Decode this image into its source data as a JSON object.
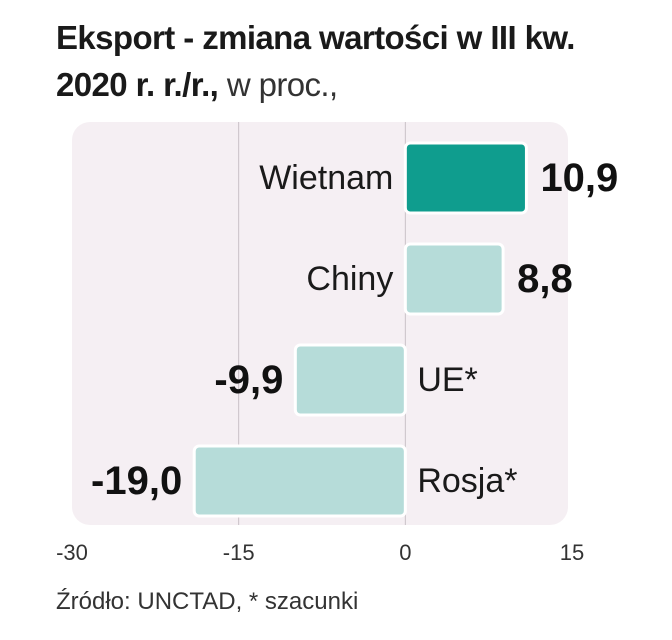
{
  "title_bold_1": "Eksport - zmiana wartości w III kw.",
  "title_bold_2": "2020 r. r./r.,",
  "title_unit": " w proc.,",
  "source": "Źródło: UNCTAD, * szacunki",
  "colors": {
    "highlight": "#0f9d8e",
    "bar": "#b6dcd9",
    "background": "#f5eff3"
  },
  "chart_data": {
    "type": "bar",
    "orientation": "horizontal",
    "categories": [
      "Wietnam",
      "Chiny",
      "UE*",
      "Rosja*"
    ],
    "values": [
      10.9,
      8.8,
      -9.9,
      -19.0
    ],
    "value_labels": [
      "10,9",
      "8,8",
      "-9,9",
      "-19,0"
    ],
    "highlighted": "Wietnam",
    "xlim": [
      -30,
      15
    ],
    "xticks": [
      -30,
      -15,
      0,
      15
    ],
    "xtick_labels": [
      "-30",
      "-15",
      "0",
      "15"
    ],
    "grid": true
  }
}
